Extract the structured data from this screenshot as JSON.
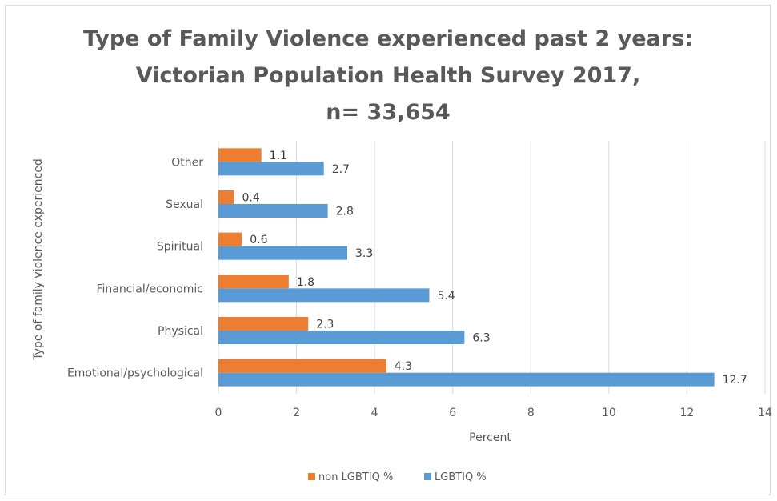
{
  "chart_data": {
    "type": "bar",
    "orientation": "horizontal",
    "title_lines": [
      "Type of Family Violence experienced past 2 years:",
      "Victorian Population Health Survey 2017,",
      "n= 33,654"
    ],
    "categories": [
      "Emotional/psychological",
      "Physical",
      "Financial/economic",
      "Spiritual",
      "Sexual",
      "Other"
    ],
    "series": [
      {
        "name": "non LGBTIQ %",
        "color": "#ed7d31",
        "values": [
          4.3,
          2.3,
          1.8,
          0.6,
          0.4,
          1.1
        ]
      },
      {
        "name": "LGBTIQ %",
        "color": "#5b9bd5",
        "values": [
          12.7,
          6.3,
          5.4,
          3.3,
          2.8,
          2.7
        ]
      }
    ],
    "xlabel": "Percent",
    "ylabel": "Type of family violence experienced",
    "xlim": [
      0,
      14
    ],
    "xticks": [
      0,
      2,
      4,
      6,
      8,
      10,
      12,
      14
    ],
    "grid": true,
    "legend_position": "bottom"
  }
}
